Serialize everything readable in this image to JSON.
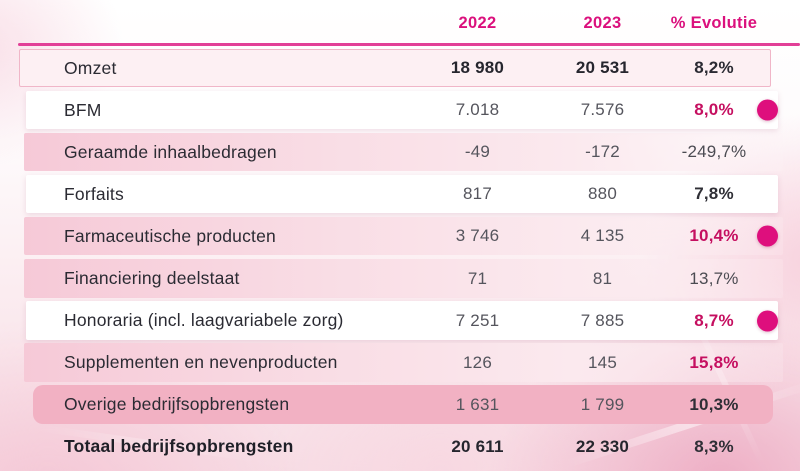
{
  "colors": {
    "accent_pink": "#db107d",
    "header_divider": "#e23f97",
    "bold_value_pink": "#c50f60",
    "dot_pink": "#de0f7d",
    "solid_row_pink": "#f2b1c3",
    "bordered_row_bg": "#fdf0f3"
  },
  "table": {
    "columns": [
      "2022",
      "2023",
      "% Evolutie"
    ],
    "rows": [
      {
        "label": "Omzet",
        "v2022": "18 980",
        "v2023": "20 531",
        "evolutie": "8,2%",
        "band": "bordered",
        "value_style": "semibold-dark",
        "evolutie_style": "semibold-dark",
        "label_bold": false,
        "dot": false
      },
      {
        "label": "BFM",
        "v2022": "7.018",
        "v2023": "7.576",
        "evolutie": "8,0%",
        "band": "white",
        "value_style": "gray",
        "evolutie_style": "bold-pink",
        "label_bold": false,
        "dot": true
      },
      {
        "label": "Geraamde inhaalbedragen",
        "v2022": "-49",
        "v2023": "-172",
        "evolutie": "-249,7%",
        "band": "tint",
        "value_style": "gray",
        "evolutie_style": "regular",
        "label_bold": false,
        "dot": false
      },
      {
        "label": "Forfaits",
        "v2022": "817",
        "v2023": "880",
        "evolutie": "7,8%",
        "band": "white",
        "value_style": "gray",
        "evolutie_style": "bold-dark",
        "label_bold": false,
        "dot": false
      },
      {
        "label": "Farmaceutische producten",
        "v2022": "3 746",
        "v2023": "4 135",
        "evolutie": "10,4%",
        "band": "tint",
        "value_style": "gray",
        "evolutie_style": "bold-pink",
        "label_bold": false,
        "dot": true
      },
      {
        "label": "Financiering deelstaat",
        "v2022": "71",
        "v2023": "81",
        "evolutie": "13,7%",
        "band": "tint",
        "value_style": "gray",
        "evolutie_style": "regular",
        "label_bold": false,
        "dot": false
      },
      {
        "label": "Honoraria (incl. laagvariabele zorg)",
        "v2022": "7 251",
        "v2023": "7 885",
        "evolutie": "8,7%",
        "band": "white",
        "value_style": "gray",
        "evolutie_style": "bold-pink",
        "label_bold": false,
        "dot": true
      },
      {
        "label": "Supplementen en nevenproducten",
        "v2022": "126",
        "v2023": "145",
        "evolutie": "15,8%",
        "band": "tint",
        "value_style": "gray",
        "evolutie_style": "bold-pink",
        "label_bold": false,
        "dot": false
      },
      {
        "label": "Overige bedrijfsopbrengsten",
        "v2022": "1 631",
        "v2023": "1 799",
        "evolutie": "10,3%",
        "band": "solid",
        "value_style": "gray",
        "evolutie_style": "bold-dark",
        "label_bold": false,
        "dot": false
      },
      {
        "label": "Totaal bedrijfsopbrengsten",
        "v2022": "20 611",
        "v2023": "22 330",
        "evolutie": "8,3%",
        "band": "none",
        "value_style": "semibold-dark",
        "evolutie_style": "bold-dark",
        "label_bold": true,
        "dot": false
      }
    ]
  }
}
